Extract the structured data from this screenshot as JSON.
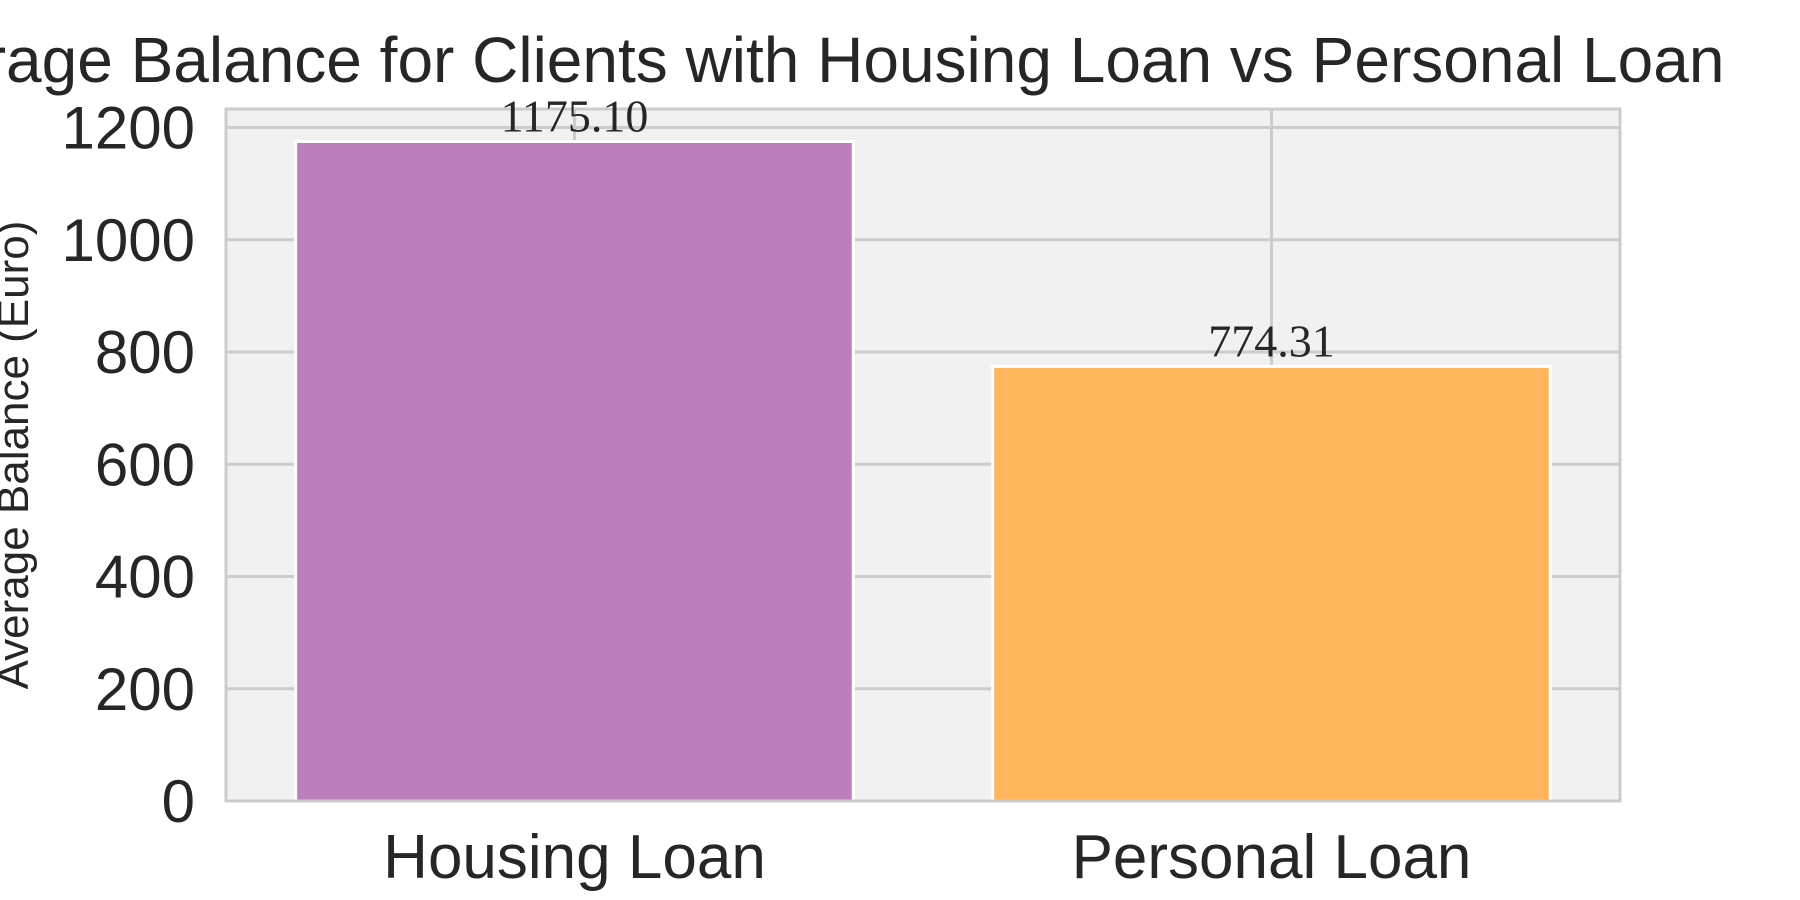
{
  "chart_data": {
    "type": "bar",
    "title": "Average Balance for Clients with Housing Loan vs Personal Loan",
    "xlabel": "",
    "ylabel": "Average Balance (Euro)",
    "categories": [
      "Housing Loan",
      "Personal Loan"
    ],
    "values": [
      1175.1,
      774.31
    ],
    "data_labels": [
      "1175.10",
      "774.31"
    ],
    "colors": [
      "#bc7fbc",
      "#ffb55b"
    ],
    "ylim": [
      0,
      1233
    ],
    "yticks": [
      0,
      200,
      400,
      600,
      800,
      1000,
      1200
    ],
    "grid": true,
    "legend": "none",
    "style": {
      "plot_background": "#f1f1f1",
      "grid_color": "#cccccc",
      "spine_color": "#cccccc",
      "bar_edge_color": "#ffffff"
    }
  }
}
